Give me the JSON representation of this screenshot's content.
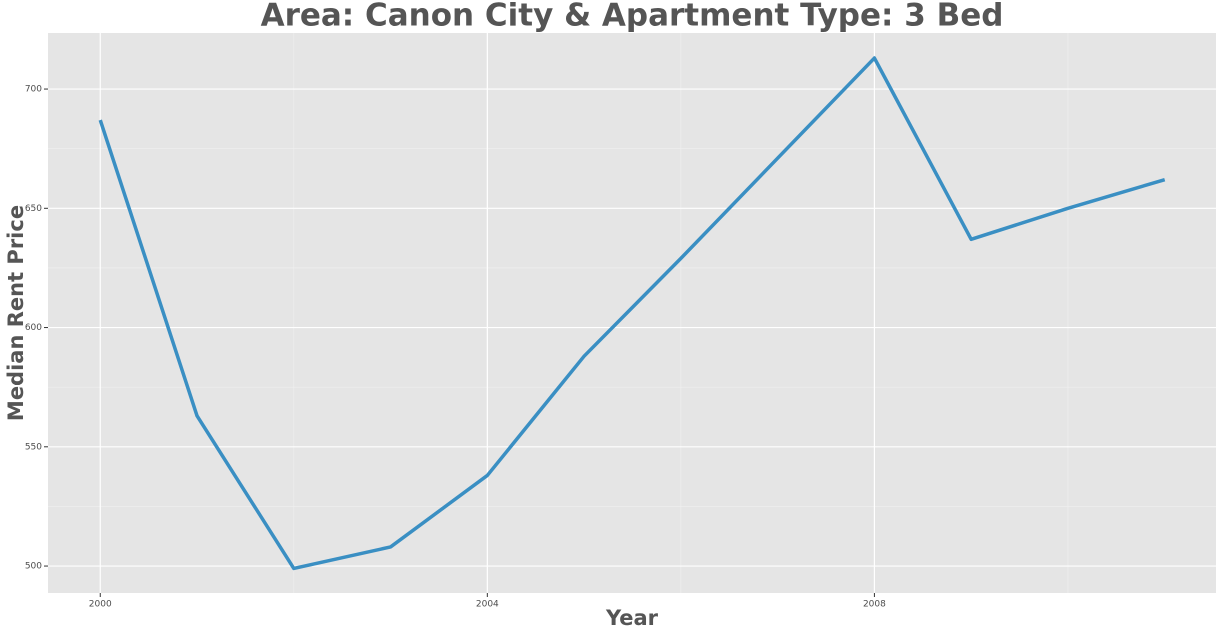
{
  "chart_data": {
    "type": "line",
    "title": "Area: Canon City & Apartment Type: 3 Bed",
    "x_label": "Year",
    "y_label": "Median Rent Price",
    "x": [
      2000,
      2001,
      2002,
      2003,
      2004,
      2005,
      2006,
      2007,
      2008,
      2009,
      2010,
      2011
    ],
    "series": [
      {
        "name": "Median Rent Price",
        "color": "#3a8fc3",
        "values": [
          687,
          563,
          499,
          508,
          538,
          588,
          629,
          671,
          713,
          637,
          650,
          662
        ]
      }
    ],
    "xlim": [
      1999.46,
      2011.53
    ],
    "xticks": [
      2000,
      2004,
      2008
    ],
    "minor_xticks": [
      2002,
      2006,
      2010
    ],
    "ylim": [
      488.7,
      723.5
    ],
    "yticks": [
      500,
      550,
      600,
      650,
      700
    ],
    "minor_yticks": [
      525,
      575,
      625,
      675
    ],
    "grid": true
  }
}
